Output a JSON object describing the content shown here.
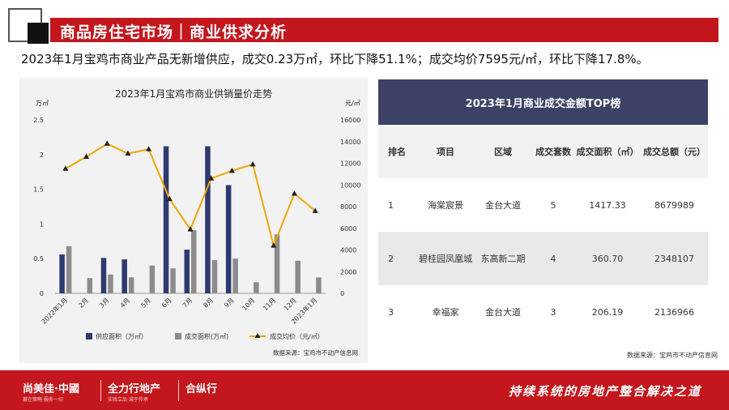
{
  "header": {
    "title": "商品房住宅市场｜商业供求分析",
    "subtitle": "2023年1月宝鸡市商业产品无新增供应，成交0.23万㎡，环比下降51.1%；成交均价7595元/㎡，环比下降17.8%。"
  },
  "chart_data": {
    "type": "bar+line",
    "title": "2023年1月宝鸡市商业供销量价走势",
    "y_left_unit": "万㎡",
    "y_right_unit": "元/㎡",
    "ylim_left": [
      0,
      2.5
    ],
    "ylim_right": [
      0,
      16000
    ],
    "y_left_ticks": [
      "0",
      "0.5",
      "1",
      "1.5",
      "2",
      "2.5"
    ],
    "y_right_ticks": [
      "0",
      "2000",
      "4000",
      "6000",
      "8000",
      "10000",
      "12000",
      "14000",
      "16000"
    ],
    "categories": [
      "2022年1月",
      "2月",
      "3月",
      "4月",
      "5月",
      "6月",
      "7月",
      "8月",
      "9月",
      "10月",
      "11月",
      "12月",
      "2023年1月"
    ],
    "series": [
      {
        "name": "供应面积（万㎡）",
        "kind": "bar",
        "color": "#2e3a6e",
        "values": [
          0.56,
          0,
          0.51,
          0.49,
          0,
          2.12,
          0.63,
          2.12,
          1.56,
          0,
          0,
          0,
          0
        ]
      },
      {
        "name": "成交面积(万㎡)",
        "kind": "bar",
        "color": "#8c8c8c",
        "values": [
          0.68,
          0.22,
          0.27,
          0.23,
          0.4,
          0.36,
          0.91,
          0.48,
          0.5,
          0.16,
          0.85,
          0.47,
          0.23
        ]
      },
      {
        "name": "成交均价（元/㎡）",
        "kind": "line",
        "axis": "right",
        "color": "#f0a500",
        "values": [
          11500,
          12600,
          13800,
          12900,
          13300,
          8700,
          5900,
          10600,
          11300,
          11900,
          4400,
          9200,
          7595
        ]
      }
    ],
    "source": "数据来源：宝鸡市不动产信息网"
  },
  "table": {
    "title": "2023年1月商业成交金额TOP榜",
    "columns": [
      "排名",
      "项目",
      "区域",
      "成交套数",
      "成交面积（㎡）",
      "成交总额（元）"
    ],
    "rows": [
      [
        "1",
        "海棠宸景",
        "金台大道",
        "5",
        "1417.33",
        "8679989"
      ],
      [
        "2",
        "碧桂园凤凰城",
        "东高新二期",
        "4",
        "360.70",
        "2348107"
      ],
      [
        "3",
        "幸福家",
        "金台大道",
        "3",
        "206.19",
        "2136966"
      ]
    ],
    "source": "数据来源：宝鸡市不动产信息网"
  },
  "footer": {
    "brand1": "尚美佳·中國",
    "brand1_sub": "赢在策略·服务一切",
    "brand2": "全力行地产",
    "brand2_sub": "实践立品·诚于传承",
    "brand3": "合纵行",
    "slogan": "持续系统的房地产整合解决之道"
  },
  "colors": {
    "accent": "#c3171d",
    "table_header": "#3c4266"
  }
}
